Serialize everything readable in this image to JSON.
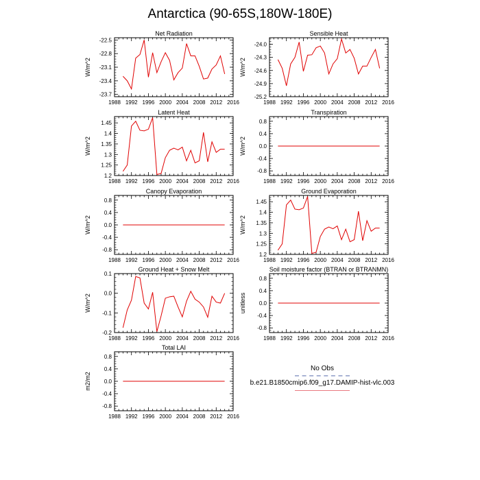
{
  "title": "Antarctica (90-65S,180W-180E)",
  "legend": {
    "obs_label": "No Obs",
    "obs_color": "#a9b3d4",
    "model_label": "b.e21.B1850cmip6.f09_g17.DAMIP-hist-vlc.003",
    "model_color": "#e9787f"
  },
  "chart_data": [
    {
      "type": "line",
      "title": "Net Radiation",
      "ylabel": "W/m^2",
      "xlim": [
        1988,
        2016
      ],
      "xticks": [
        1988,
        1992,
        1996,
        2000,
        2004,
        2008,
        2012,
        2016
      ],
      "ylim": [
        -23.75,
        -22.45
      ],
      "yticks": [
        -23.7,
        -23.4,
        -23.1,
        -22.8,
        -22.5
      ],
      "line_color": "#e00000",
      "series": [
        {
          "x": [
            1990,
            1991,
            1992,
            1993,
            1994,
            1995,
            1996,
            1997,
            1998,
            1999,
            2000,
            2001,
            2002,
            2003,
            2004,
            2005,
            2006,
            2007,
            2008,
            2009,
            2010,
            2011,
            2012,
            2013,
            2014
          ],
          "y": [
            -23.3,
            -23.4,
            -23.58,
            -22.9,
            -22.82,
            -22.5,
            -23.32,
            -22.78,
            -23.22,
            -22.98,
            -22.78,
            -22.95,
            -23.38,
            -23.22,
            -23.12,
            -22.58,
            -22.85,
            -22.85,
            -23.08,
            -23.36,
            -23.34,
            -23.14,
            -23.05,
            -22.85,
            -23.25
          ]
        }
      ]
    },
    {
      "type": "line",
      "title": "Sensible Heat",
      "ylabel": "W/m^2",
      "xlim": [
        1988,
        2016
      ],
      "xticks": [
        1988,
        1992,
        1996,
        2000,
        2004,
        2008,
        2012,
        2016
      ],
      "ylim": [
        -25.2,
        -23.85
      ],
      "yticks": [
        -25.2,
        -24.9,
        -24.6,
        -24.3,
        -24.0
      ],
      "line_color": "#e00000",
      "series": [
        {
          "x": [
            1990,
            1991,
            1992,
            1993,
            1994,
            1995,
            1996,
            1997,
            1998,
            1999,
            2000,
            2001,
            2002,
            2003,
            2004,
            2005,
            2006,
            2007,
            2008,
            2009,
            2010,
            2011,
            2012,
            2013,
            2014
          ],
          "y": [
            -24.35,
            -24.55,
            -24.95,
            -24.45,
            -24.3,
            -23.95,
            -24.62,
            -24.25,
            -24.24,
            -24.08,
            -24.04,
            -24.2,
            -24.68,
            -24.45,
            -24.33,
            -23.88,
            -24.2,
            -24.12,
            -24.32,
            -24.68,
            -24.5,
            -24.5,
            -24.3,
            -24.12,
            -24.55
          ]
        }
      ]
    },
    {
      "type": "line",
      "title": "Latent Heat",
      "ylabel": "W/m^2",
      "xlim": [
        1988,
        2016
      ],
      "xticks": [
        1988,
        1992,
        1996,
        2000,
        2004,
        2008,
        2012,
        2016
      ],
      "ylim": [
        1.2,
        1.48
      ],
      "yticks": [
        1.2,
        1.25,
        1.3,
        1.35,
        1.4,
        1.45
      ],
      "line_color": "#e00000",
      "series": [
        {
          "x": [
            1990,
            1991,
            1992,
            1993,
            1994,
            1995,
            1996,
            1997,
            1998,
            1999,
            2000,
            2001,
            2002,
            2003,
            2004,
            2005,
            2006,
            2007,
            2008,
            2009,
            2010,
            2011,
            2012,
            2013,
            2014
          ],
          "y": [
            1.22,
            1.25,
            1.435,
            1.458,
            1.415,
            1.412,
            1.42,
            1.475,
            1.205,
            1.21,
            1.285,
            1.32,
            1.33,
            1.322,
            1.335,
            1.27,
            1.32,
            1.26,
            1.27,
            1.405,
            1.265,
            1.36,
            1.31,
            1.325,
            1.325
          ]
        }
      ]
    },
    {
      "type": "line",
      "title": "Transpiration",
      "ylabel": "W/m^2",
      "xlim": [
        1988,
        2016
      ],
      "xticks": [
        1988,
        1992,
        1996,
        2000,
        2004,
        2008,
        2012,
        2016
      ],
      "ylim": [
        -0.95,
        0.95
      ],
      "yticks": [
        -0.8,
        -0.4,
        0.0,
        0.4,
        0.8
      ],
      "line_color": "#e00000",
      "series": [
        {
          "x": [
            1990,
            2014
          ],
          "y": [
            0,
            0
          ]
        }
      ]
    },
    {
      "type": "line",
      "title": "Canopy Evaporation",
      "ylabel": "W/m^2",
      "xlim": [
        1988,
        2016
      ],
      "xticks": [
        1988,
        1992,
        1996,
        2000,
        2004,
        2008,
        2012,
        2016
      ],
      "ylim": [
        -0.95,
        0.95
      ],
      "yticks": [
        -0.8,
        -0.4,
        0.0,
        0.4,
        0.8
      ],
      "line_color": "#e00000",
      "series": [
        {
          "x": [
            1990,
            2014
          ],
          "y": [
            0,
            0
          ]
        }
      ]
    },
    {
      "type": "line",
      "title": "Ground Evaporation",
      "ylabel": "W/m^2",
      "xlim": [
        1988,
        2016
      ],
      "xticks": [
        1988,
        1992,
        1996,
        2000,
        2004,
        2008,
        2012,
        2016
      ],
      "ylim": [
        1.2,
        1.48
      ],
      "yticks": [
        1.2,
        1.25,
        1.3,
        1.35,
        1.4,
        1.45
      ],
      "line_color": "#e00000",
      "series": [
        {
          "x": [
            1990,
            1991,
            1992,
            1993,
            1994,
            1995,
            1996,
            1997,
            1998,
            1999,
            2000,
            2001,
            2002,
            2003,
            2004,
            2005,
            2006,
            2007,
            2008,
            2009,
            2010,
            2011,
            2012,
            2013,
            2014
          ],
          "y": [
            1.22,
            1.25,
            1.435,
            1.458,
            1.415,
            1.412,
            1.42,
            1.475,
            1.205,
            1.21,
            1.285,
            1.32,
            1.33,
            1.322,
            1.335,
            1.27,
            1.32,
            1.26,
            1.27,
            1.405,
            1.265,
            1.36,
            1.31,
            1.325,
            1.325
          ]
        }
      ]
    },
    {
      "type": "line",
      "title": "Ground Heat + Snow Melt",
      "ylabel": "W/m^2",
      "xlim": [
        1988,
        2016
      ],
      "xticks": [
        1988,
        1992,
        1996,
        2000,
        2004,
        2008,
        2012,
        2016
      ],
      "ylim": [
        -0.2,
        0.1
      ],
      "yticks": [
        -0.2,
        -0.1,
        0.0,
        0.1
      ],
      "line_color": "#e00000",
      "series": [
        {
          "x": [
            1990,
            1991,
            1992,
            1993,
            1994,
            1995,
            1996,
            1997,
            1998,
            1999,
            2000,
            2001,
            2002,
            2003,
            2004,
            2005,
            2006,
            2007,
            2008,
            2009,
            2010,
            2011,
            2012,
            2013,
            2014
          ],
          "y": [
            -0.175,
            -0.085,
            -0.035,
            0.085,
            0.078,
            -0.05,
            -0.08,
            0.005,
            -0.195,
            -0.115,
            -0.025,
            -0.018,
            -0.015,
            -0.07,
            -0.12,
            -0.04,
            0.01,
            -0.03,
            -0.045,
            -0.07,
            -0.122,
            -0.015,
            -0.045,
            -0.05,
            0.0
          ]
        }
      ]
    },
    {
      "type": "line",
      "title": "Soil moisture factor (BTRAN or BTRANMN)",
      "ylabel": "unitless",
      "xlim": [
        1988,
        2016
      ],
      "xticks": [
        1988,
        1992,
        1996,
        2000,
        2004,
        2008,
        2012,
        2016
      ],
      "ylim": [
        -0.95,
        0.95
      ],
      "yticks": [
        -0.8,
        -0.4,
        0.0,
        0.4,
        0.8
      ],
      "line_color": "#e00000",
      "series": [
        {
          "x": [
            1990,
            2014
          ],
          "y": [
            0,
            0
          ]
        }
      ]
    },
    {
      "type": "line",
      "title": "Total LAI",
      "ylabel": "m2/m2",
      "xlim": [
        1988,
        2016
      ],
      "xticks": [
        1988,
        1992,
        1996,
        2000,
        2004,
        2008,
        2012,
        2016
      ],
      "ylim": [
        -0.95,
        0.95
      ],
      "yticks": [
        -0.8,
        -0.4,
        0.0,
        0.4,
        0.8
      ],
      "line_color": "#e00000",
      "series": [
        {
          "x": [
            1990,
            2014
          ],
          "y": [
            0,
            0
          ]
        }
      ]
    }
  ]
}
